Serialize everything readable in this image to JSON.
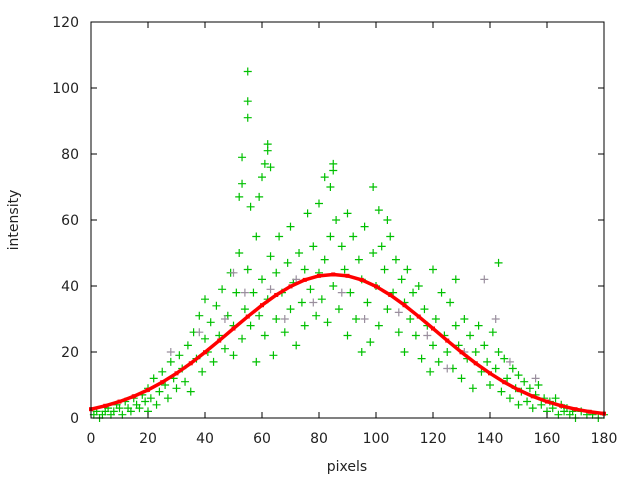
{
  "chart_data": {
    "type": "scatter",
    "title": "",
    "xlabel": "pixels",
    "ylabel": "intensity",
    "xlim": [
      0,
      180
    ],
    "ylim": [
      0,
      120
    ],
    "xticks": [
      "0",
      "20",
      "40",
      "60",
      "80",
      "100",
      "120",
      "140",
      "160",
      "180"
    ],
    "yticks": [
      "0",
      "20",
      "40",
      "60",
      "80",
      "100",
      "120"
    ],
    "grid": false,
    "legend": "none",
    "colors": {
      "green": "#00c000",
      "gray": "#9a8f9e",
      "red": "#ff0000"
    },
    "series": [
      {
        "type": "scatter",
        "marker": "plus",
        "color": "#00c000",
        "points": [
          [
            1,
            1
          ],
          [
            2,
            2
          ],
          [
            3,
            0
          ],
          [
            4,
            1
          ],
          [
            5,
            2
          ],
          [
            6,
            3
          ],
          [
            7,
            1
          ],
          [
            8,
            2
          ],
          [
            9,
            4
          ],
          [
            10,
            3
          ],
          [
            11,
            1
          ],
          [
            12,
            5
          ],
          [
            13,
            3
          ],
          [
            14,
            2
          ],
          [
            15,
            6
          ],
          [
            16,
            4
          ],
          [
            17,
            3
          ],
          [
            18,
            7
          ],
          [
            19,
            5
          ],
          [
            20,
            2
          ],
          [
            20,
            9
          ],
          [
            21,
            6
          ],
          [
            22,
            12
          ],
          [
            23,
            4
          ],
          [
            24,
            8
          ],
          [
            25,
            14
          ],
          [
            26,
            10
          ],
          [
            27,
            6
          ],
          [
            28,
            17
          ],
          [
            29,
            12
          ],
          [
            30,
            9
          ],
          [
            31,
            19
          ],
          [
            32,
            15
          ],
          [
            33,
            11
          ],
          [
            34,
            22
          ],
          [
            35,
            8
          ],
          [
            36,
            26
          ],
          [
            37,
            18
          ],
          [
            38,
            31
          ],
          [
            39,
            14
          ],
          [
            40,
            24
          ],
          [
            40,
            36
          ],
          [
            41,
            20
          ],
          [
            42,
            29
          ],
          [
            43,
            17
          ],
          [
            44,
            34
          ],
          [
            45,
            25
          ],
          [
            46,
            39
          ],
          [
            47,
            21
          ],
          [
            48,
            31
          ],
          [
            49,
            44
          ],
          [
            50,
            28
          ],
          [
            50,
            19
          ],
          [
            51,
            38
          ],
          [
            52,
            50
          ],
          [
            52,
            67
          ],
          [
            53,
            79
          ],
          [
            53,
            71
          ],
          [
            53,
            24
          ],
          [
            54,
            33
          ],
          [
            55,
            105
          ],
          [
            55,
            96
          ],
          [
            55,
            91
          ],
          [
            55,
            45
          ],
          [
            56,
            64
          ],
          [
            56,
            28
          ],
          [
            57,
            38
          ],
          [
            58,
            55
          ],
          [
            58,
            17
          ],
          [
            59,
            67
          ],
          [
            59,
            31
          ],
          [
            60,
            73
          ],
          [
            60,
            42
          ],
          [
            61,
            77
          ],
          [
            61,
            25
          ],
          [
            62,
            83
          ],
          [
            62,
            81
          ],
          [
            62,
            36
          ],
          [
            63,
            76
          ],
          [
            63,
            49
          ],
          [
            64,
            19
          ],
          [
            65,
            44
          ],
          [
            65,
            30
          ],
          [
            66,
            55
          ],
          [
            67,
            38
          ],
          [
            68,
            26
          ],
          [
            69,
            47
          ],
          [
            70,
            33
          ],
          [
            70,
            58
          ],
          [
            71,
            41
          ],
          [
            72,
            22
          ],
          [
            73,
            50
          ],
          [
            74,
            35
          ],
          [
            75,
            45
          ],
          [
            75,
            28
          ],
          [
            76,
            62
          ],
          [
            77,
            39
          ],
          [
            78,
            52
          ],
          [
            79,
            31
          ],
          [
            80,
            44
          ],
          [
            80,
            65
          ],
          [
            81,
            36
          ],
          [
            82,
            73
          ],
          [
            82,
            48
          ],
          [
            83,
            29
          ],
          [
            84,
            70
          ],
          [
            84,
            55
          ],
          [
            85,
            77
          ],
          [
            85,
            75
          ],
          [
            85,
            40
          ],
          [
            86,
            60
          ],
          [
            87,
            33
          ],
          [
            88,
            52
          ],
          [
            89,
            45
          ],
          [
            90,
            25
          ],
          [
            90,
            62
          ],
          [
            91,
            38
          ],
          [
            92,
            55
          ],
          [
            93,
            30
          ],
          [
            94,
            48
          ],
          [
            95,
            20
          ],
          [
            95,
            42
          ],
          [
            96,
            58
          ],
          [
            97,
            35
          ],
          [
            98,
            23
          ],
          [
            99,
            70
          ],
          [
            99,
            50
          ],
          [
            100,
            40
          ],
          [
            101,
            63
          ],
          [
            101,
            28
          ],
          [
            102,
            52
          ],
          [
            103,
            45
          ],
          [
            104,
            60
          ],
          [
            104,
            33
          ],
          [
            105,
            55
          ],
          [
            106,
            38
          ],
          [
            107,
            48
          ],
          [
            108,
            26
          ],
          [
            109,
            42
          ],
          [
            110,
            35
          ],
          [
            110,
            20
          ],
          [
            111,
            45
          ],
          [
            112,
            30
          ],
          [
            113,
            38
          ],
          [
            114,
            25
          ],
          [
            115,
            40
          ],
          [
            116,
            18
          ],
          [
            117,
            33
          ],
          [
            118,
            28
          ],
          [
            119,
            14
          ],
          [
            120,
            45
          ],
          [
            120,
            22
          ],
          [
            121,
            30
          ],
          [
            122,
            17
          ],
          [
            123,
            38
          ],
          [
            124,
            25
          ],
          [
            125,
            20
          ],
          [
            126,
            35
          ],
          [
            127,
            15
          ],
          [
            128,
            42
          ],
          [
            128,
            28
          ],
          [
            129,
            22
          ],
          [
            130,
            12
          ],
          [
            131,
            30
          ],
          [
            132,
            18
          ],
          [
            133,
            25
          ],
          [
            134,
            9
          ],
          [
            135,
            20
          ],
          [
            136,
            28
          ],
          [
            137,
            14
          ],
          [
            138,
            22
          ],
          [
            139,
            17
          ],
          [
            140,
            10
          ],
          [
            141,
            26
          ],
          [
            142,
            15
          ],
          [
            143,
            47
          ],
          [
            143,
            20
          ],
          [
            144,
            8
          ],
          [
            145,
            18
          ],
          [
            146,
            12
          ],
          [
            147,
            6
          ],
          [
            148,
            15
          ],
          [
            149,
            9
          ],
          [
            150,
            4
          ],
          [
            150,
            13
          ],
          [
            151,
            8
          ],
          [
            152,
            11
          ],
          [
            153,
            5
          ],
          [
            154,
            9
          ],
          [
            155,
            3
          ],
          [
            156,
            7
          ],
          [
            157,
            10
          ],
          [
            158,
            4
          ],
          [
            159,
            6
          ],
          [
            160,
            2
          ],
          [
            161,
            5
          ],
          [
            162,
            3
          ],
          [
            163,
            6
          ],
          [
            164,
            1
          ],
          [
            165,
            4
          ],
          [
            166,
            2
          ],
          [
            167,
            3
          ],
          [
            168,
            1
          ],
          [
            169,
            2
          ],
          [
            170,
            0
          ],
          [
            172,
            2
          ],
          [
            174,
            1
          ],
          [
            176,
            1
          ],
          [
            178,
            0
          ],
          [
            180,
            1
          ]
        ]
      },
      {
        "type": "scatter",
        "marker": "plus",
        "color": "#9a8f9e",
        "points": [
          [
            28,
            20
          ],
          [
            38,
            26
          ],
          [
            47,
            30
          ],
          [
            50,
            44
          ],
          [
            54,
            38
          ],
          [
            63,
            39
          ],
          [
            68,
            30
          ],
          [
            72,
            42
          ],
          [
            78,
            35
          ],
          [
            88,
            38
          ],
          [
            96,
            30
          ],
          [
            108,
            32
          ],
          [
            118,
            25
          ],
          [
            125,
            15
          ],
          [
            131,
            20
          ],
          [
            138,
            42
          ],
          [
            142,
            30
          ],
          [
            147,
            17
          ],
          [
            156,
            12
          ]
        ]
      },
      {
        "type": "line",
        "color": "#ff0000",
        "x": [
          0,
          5,
          10,
          15,
          20,
          25,
          30,
          35,
          40,
          45,
          50,
          55,
          60,
          65,
          70,
          75,
          80,
          85,
          90,
          95,
          100,
          105,
          110,
          115,
          120,
          125,
          130,
          135,
          140,
          145,
          150,
          155,
          160,
          165,
          170,
          175,
          180
        ],
        "y": [
          2.67,
          3.69,
          4.97,
          6.57,
          8.52,
          10.85,
          13.54,
          16.58,
          19.92,
          23.46,
          27.12,
          30.74,
          34.18,
          37.28,
          39.88,
          41.85,
          43.08,
          43.5,
          43.08,
          41.85,
          39.88,
          37.28,
          34.18,
          30.74,
          27.12,
          23.46,
          19.92,
          16.58,
          13.54,
          10.85,
          8.52,
          6.57,
          4.97,
          3.69,
          2.67,
          1.89,
          1.32
        ]
      }
    ]
  }
}
